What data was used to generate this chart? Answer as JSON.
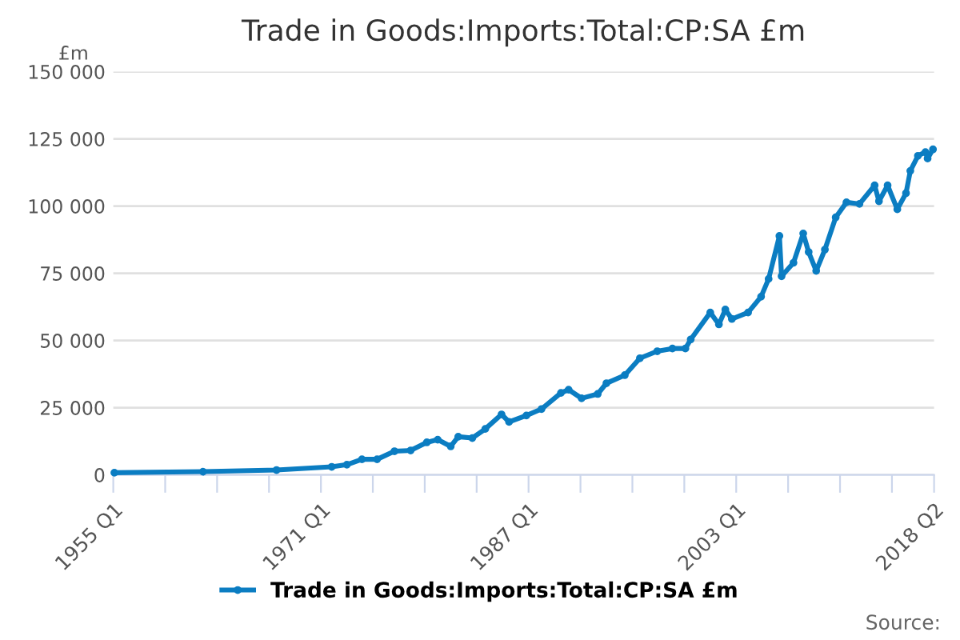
{
  "chart_data": {
    "type": "line",
    "title": "Trade in Goods:Imports:Total:CP:SA £m",
    "ylabel": "£m",
    "annotations": [
      "Source:"
    ],
    "x": [
      "1955-02",
      "1961-12",
      "1967-08",
      "1971-11",
      "1973-01",
      "1974-03",
      "1975-05",
      "1976-09",
      "1977-12",
      "1979-03",
      "1980-01",
      "1981-01",
      "1981-08",
      "1982-09",
      "1983-09",
      "1984-12",
      "1985-07",
      "1986-11",
      "1988-01",
      "1989-07",
      "1990-02",
      "1991-02",
      "1992-05",
      "1993-01",
      "1994-06",
      "1995-08",
      "1996-12",
      "1998-02",
      "1999-02",
      "1999-07",
      "2001-01",
      "2001-09",
      "2002-03",
      "2002-09",
      "2003-12",
      "2004-12",
      "2005-07",
      "2006-05",
      "2006-07",
      "2007-06",
      "2008-03",
      "2008-08",
      "2009-03",
      "2009-11",
      "2010-09",
      "2011-07",
      "2012-07",
      "2013-09",
      "2014-01",
      "2014-09",
      "2015-06",
      "2016-02",
      "2016-06",
      "2017-01",
      "2017-08",
      "2017-10",
      "2018-03"
    ],
    "series": [
      {
        "name": "Trade in Goods:Imports:Total:CP:SA £m",
        "color": "#0b7dc2",
        "values": [
          800,
          1200,
          1800,
          3000,
          3800,
          5800,
          5800,
          8800,
          9100,
          12100,
          13100,
          10600,
          14200,
          13700,
          17100,
          22500,
          19700,
          22100,
          24500,
          30500,
          31700,
          28500,
          30100,
          34100,
          37100,
          43400,
          46000,
          47000,
          47000,
          50400,
          60400,
          56000,
          61500,
          58000,
          60400,
          66300,
          72900,
          88900,
          73900,
          78900,
          89800,
          82900,
          75900,
          83800,
          95800,
          101400,
          100800,
          107700,
          101800,
          107700,
          98800,
          104800,
          113100,
          118700,
          120100,
          117700,
          121100
        ]
      }
    ],
    "xlim": [
      "1955-01",
      "2018-04"
    ],
    "xticks": [
      {
        "value": "1955-01",
        "label": "1955 Q1"
      },
      {
        "value": "1959-01",
        "label": null
      },
      {
        "value": "1963-01",
        "label": null
      },
      {
        "value": "1967-01",
        "label": null
      },
      {
        "value": "1971-01",
        "label": "1971 Q1"
      },
      {
        "value": "1975-01",
        "label": null
      },
      {
        "value": "1979-01",
        "label": null
      },
      {
        "value": "1983-01",
        "label": null
      },
      {
        "value": "1987-01",
        "label": "1987 Q1"
      },
      {
        "value": "1991-01",
        "label": null
      },
      {
        "value": "1995-01",
        "label": null
      },
      {
        "value": "1999-01",
        "label": null
      },
      {
        "value": "2003-01",
        "label": "2003 Q1"
      },
      {
        "value": "2007-01",
        "label": null
      },
      {
        "value": "2011-01",
        "label": null
      },
      {
        "value": "2015-01",
        "label": null
      },
      {
        "value": "2018-04",
        "label": "2018 Q2"
      }
    ],
    "ylim": [
      0,
      150000
    ],
    "yticks": [
      0,
      {
        "value": 25000,
        "label": "25 000"
      },
      {
        "value": 50000,
        "label": "50 000"
      },
      {
        "value": 75000,
        "label": "75 000"
      },
      {
        "value": 100000,
        "label": "100 000"
      },
      {
        "value": 125000,
        "label": "125 000"
      },
      {
        "value": 150000,
        "label": "150 000"
      }
    ],
    "grid": "y",
    "legend": "bottom",
    "marker": "circle",
    "line_style": "solid"
  }
}
